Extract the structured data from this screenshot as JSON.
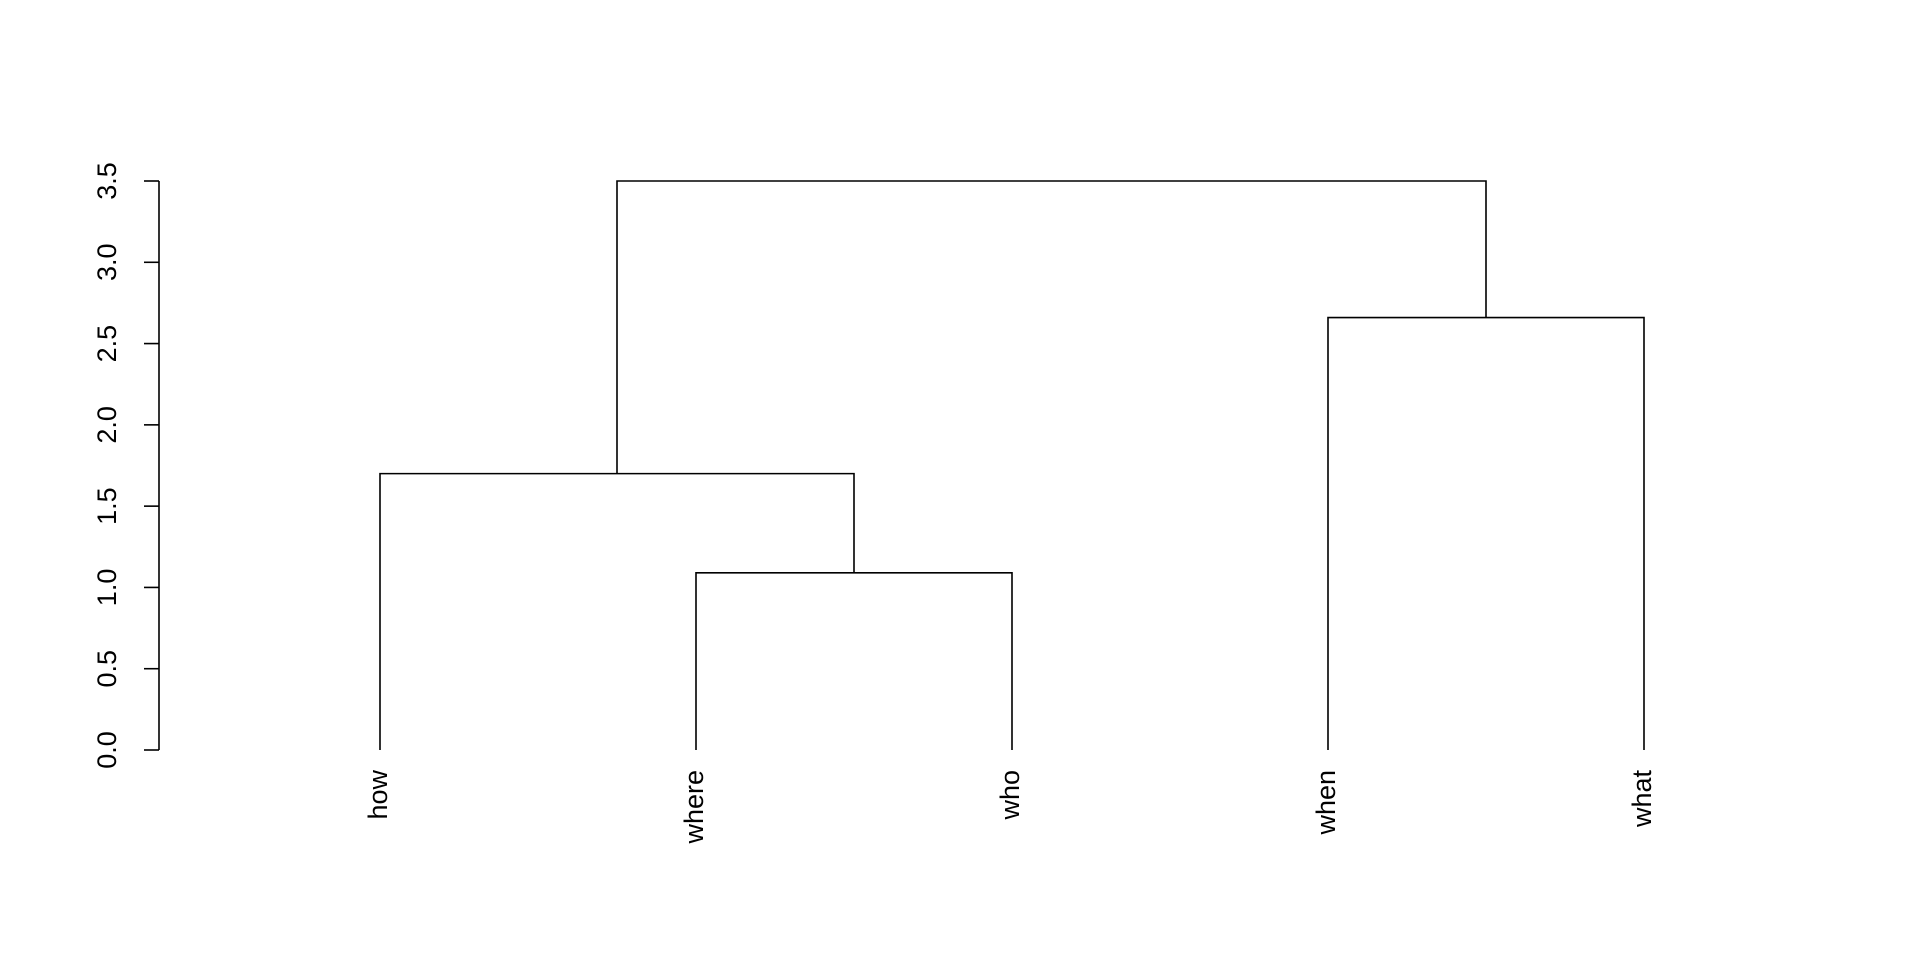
{
  "chart_data": {
    "type": "dendrogram",
    "tree": {
      "height": 3.5,
      "children": [
        {
          "height": 1.7,
          "children": [
            "how",
            {
              "height": 1.09,
              "children": [
                "where",
                "who"
              ]
            }
          ]
        },
        {
          "height": 2.66,
          "children": [
            "when",
            "what"
          ]
        }
      ]
    },
    "ylim": [
      0,
      3.5
    ],
    "yticks": [
      {
        "value": 0,
        "label": "0.0"
      },
      {
        "value": 0.5,
        "label": "0.5"
      },
      {
        "value": 1,
        "label": "1.0"
      },
      {
        "value": 1.5,
        "label": "1.5"
      },
      {
        "value": 2,
        "label": "2.0"
      },
      {
        "value": 2.5,
        "label": "2.5"
      },
      {
        "value": 3,
        "label": "3.0"
      },
      {
        "value": 3.5,
        "label": "3.5"
      }
    ],
    "color": "#000000"
  }
}
